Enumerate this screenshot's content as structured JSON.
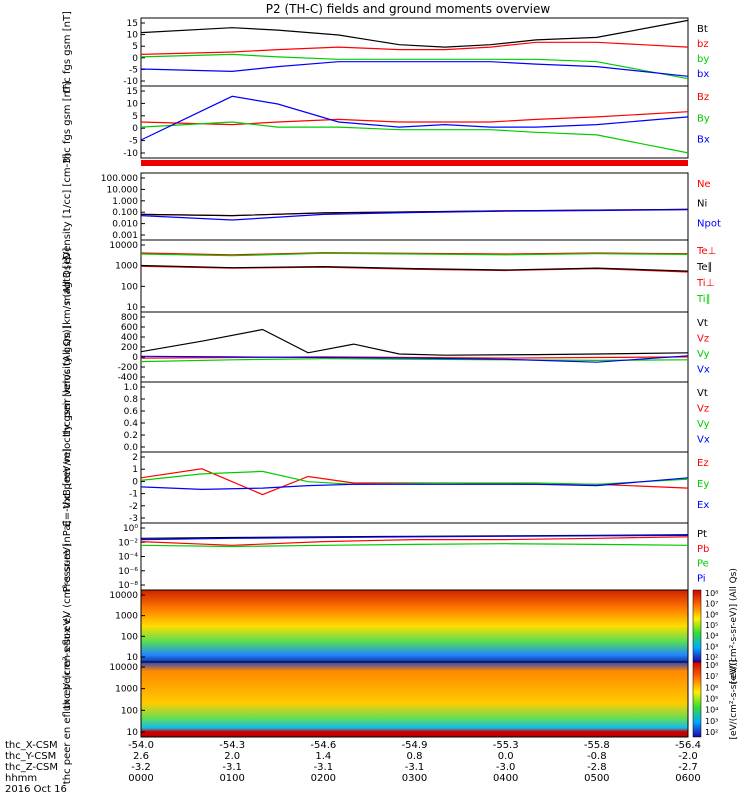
{
  "title": "P2 (TH-C) fields and ground moments overview",
  "chart_data": [
    {
      "type": "line",
      "ylabel": "thc fgs gsm [nT]",
      "yticks": [
        "15",
        "10",
        "5",
        "0",
        "-5",
        "-10"
      ],
      "ylim": [
        -12,
        16
      ],
      "series": [
        {
          "name": "Bt",
          "color": "#000000",
          "x": [
            0,
            60,
            90,
            130,
            170,
            200,
            230,
            260,
            300,
            360
          ],
          "values": [
            10,
            12,
            11,
            9,
            5,
            4,
            5,
            7,
            8,
            15
          ]
        },
        {
          "name": "bz",
          "color": "#ff0000",
          "x": [
            0,
            60,
            90,
            130,
            170,
            200,
            230,
            260,
            300,
            360
          ],
          "values": [
            1,
            2,
            3,
            4,
            3,
            3,
            4,
            6,
            6,
            4
          ]
        },
        {
          "name": "by",
          "color": "#00cc00",
          "x": [
            0,
            60,
            90,
            130,
            170,
            200,
            230,
            260,
            300,
            360
          ],
          "values": [
            0,
            1,
            0,
            -1,
            -1,
            -1,
            -1,
            -1,
            -2,
            -9
          ]
        },
        {
          "name": "bx",
          "color": "#0000ff",
          "x": [
            0,
            60,
            90,
            130,
            170,
            200,
            230,
            260,
            300,
            360
          ],
          "values": [
            -5,
            -6,
            -4,
            -2,
            -2,
            -2,
            -2,
            -3,
            -4,
            -8
          ]
        }
      ]
    },
    {
      "type": "line",
      "ylabel": "thc fgs gsm [nT]",
      "yticks": [
        "15",
        "10",
        "5",
        "0",
        "-5",
        "-10"
      ],
      "ylim": [
        -12,
        16
      ],
      "series": [
        {
          "name": "Bz",
          "color": "#ff0000",
          "x": [
            0,
            60,
            90,
            130,
            170,
            200,
            230,
            260,
            300,
            360
          ],
          "values": [
            2,
            1,
            2,
            3,
            2,
            2,
            2,
            3,
            4,
            6
          ]
        },
        {
          "name": "By",
          "color": "#00cc00",
          "x": [
            0,
            60,
            90,
            130,
            170,
            200,
            230,
            260,
            300,
            360
          ],
          "values": [
            0,
            2,
            0,
            0,
            -1,
            -1,
            -1,
            -2,
            -3,
            -10
          ]
        },
        {
          "name": "Bx",
          "color": "#0000ff",
          "x": [
            0,
            60,
            90,
            130,
            170,
            200,
            230,
            260,
            300,
            360
          ],
          "values": [
            -5,
            12,
            9,
            2,
            0,
            1,
            0,
            0,
            1,
            4
          ]
        }
      ]
    },
    {
      "type": "line",
      "ylabel": "Density [1/cc] [cm-3]",
      "yticks": [
        "100.000",
        "10.000",
        "1.000",
        "0.100",
        "0.010",
        "0.001"
      ],
      "yscale": "log",
      "ylim": [
        0.001,
        500
      ],
      "series": [
        {
          "name": "Ne",
          "color": "#ff0000",
          "x": [
            0,
            60,
            120,
            180,
            240,
            300,
            360
          ],
          "values": [
            0.15,
            0.12,
            0.2,
            0.25,
            0.3,
            0.35,
            0.4
          ]
        },
        {
          "name": "Ni",
          "color": "#000000",
          "x": [
            0,
            60,
            120,
            180,
            240,
            300,
            360
          ],
          "values": [
            0.15,
            0.12,
            0.2,
            0.25,
            0.3,
            0.35,
            0.4
          ]
        },
        {
          "name": "Npot",
          "color": "#0000ff",
          "x": [
            0,
            60,
            120,
            180,
            240,
            300,
            360
          ],
          "values": [
            0.12,
            0.05,
            0.15,
            0.22,
            0.28,
            0.32,
            0.38
          ]
        }
      ]
    },
    {
      "type": "line",
      "ylabel": "magt3 [eV]",
      "yticks": [
        "10000",
        "1000",
        "100",
        "10"
      ],
      "yscale": "log",
      "ylim": [
        2,
        12000
      ],
      "series": [
        {
          "name": "Te⊥",
          "color": "#ff0000",
          "x": [
            0,
            60,
            120,
            180,
            240,
            300,
            360
          ],
          "values": [
            500,
            400,
            450,
            350,
            300,
            380,
            250
          ]
        },
        {
          "name": "Te∥",
          "color": "#000000",
          "x": [
            0,
            60,
            120,
            180,
            240,
            300,
            360
          ],
          "values": [
            550,
            420,
            480,
            380,
            320,
            400,
            280
          ]
        },
        {
          "name": "Ti⊥",
          "color": "#ff0000",
          "x": [
            0,
            60,
            120,
            180,
            240,
            300,
            360
          ],
          "values": [
            2500,
            2000,
            2600,
            2400,
            2200,
            2500,
            2300
          ]
        },
        {
          "name": "Ti∥",
          "color": "#00cc00",
          "x": [
            0,
            60,
            120,
            180,
            240,
            300,
            360
          ],
          "values": [
            2200,
            1800,
            2400,
            2200,
            2000,
            2300,
            2100
          ]
        }
      ]
    },
    {
      "type": "line",
      "ylabel": "thc peir velocity gsm [km/s (All Qs)]",
      "yticks": [
        "800",
        "600",
        "400",
        "200",
        "0",
        "-200",
        "-400"
      ],
      "ylim": [
        -400,
        800
      ],
      "series": [
        {
          "name": "Vt",
          "color": "#000000",
          "x": [
            0,
            40,
            80,
            110,
            140,
            170,
            200,
            260,
            300,
            360
          ],
          "values": [
            120,
            300,
            500,
            100,
            250,
            80,
            60,
            70,
            80,
            100
          ]
        },
        {
          "name": "Vz",
          "color": "#ff0000",
          "x": [
            0,
            60,
            120,
            180,
            240,
            300,
            360
          ],
          "values": [
            10,
            20,
            30,
            20,
            10,
            20,
            30
          ]
        },
        {
          "name": "Vy",
          "color": "#00cc00",
          "x": [
            0,
            60,
            120,
            180,
            240,
            300,
            360
          ],
          "values": [
            -50,
            -20,
            0,
            -10,
            -20,
            -30,
            -20
          ]
        },
        {
          "name": "Vx",
          "color": "#0000ff",
          "x": [
            0,
            60,
            120,
            180,
            240,
            300,
            360
          ],
          "values": [
            40,
            30,
            20,
            10,
            -10,
            -60,
            50
          ]
        }
      ]
    },
    {
      "type": "line",
      "ylabel": "thc peer velocity gsm [km/s (All Qs)]",
      "yticks": [
        "1.0",
        "0.8",
        "0.6",
        "0.4",
        "0.2",
        "0.0"
      ],
      "ylim": [
        0,
        1
      ],
      "series": [
        {
          "name": "Vt",
          "color": "#000000",
          "x": [],
          "values": []
        },
        {
          "name": "Vz",
          "color": "#ff0000",
          "x": [],
          "values": []
        },
        {
          "name": "Vy",
          "color": "#00cc00",
          "x": [],
          "values": []
        },
        {
          "name": "Vx",
          "color": "#0000ff",
          "x": [],
          "values": []
        }
      ]
    },
    {
      "type": "line",
      "ylabel": "E=-VxB [mV/m]",
      "yticks": [
        "2",
        "1",
        "0",
        "-1",
        "-2",
        "-3"
      ],
      "ylim": [
        -3,
        2.5
      ],
      "series": [
        {
          "name": "Ez",
          "color": "#ff0000",
          "x": [
            0,
            40,
            80,
            110,
            140,
            200,
            260,
            300,
            360
          ],
          "values": [
            0.5,
            1.2,
            -0.8,
            0.6,
            0.1,
            0.1,
            0.0,
            0.0,
            -0.3
          ]
        },
        {
          "name": "Ey",
          "color": "#00cc00",
          "x": [
            0,
            40,
            80,
            110,
            140,
            200,
            260,
            300,
            360
          ],
          "values": [
            0.3,
            0.8,
            1.0,
            0.2,
            0.0,
            0.1,
            0.1,
            0.0,
            0.4
          ]
        },
        {
          "name": "Ex",
          "color": "#0000ff",
          "x": [
            0,
            40,
            80,
            110,
            140,
            200,
            260,
            300,
            360
          ],
          "values": [
            -0.2,
            -0.4,
            -0.3,
            -0.1,
            0.0,
            0.0,
            0.0,
            -0.1,
            0.5
          ]
        }
      ]
    },
    {
      "type": "line",
      "ylabel": "Pressure [nPa]",
      "yticks": [
        "10⁰",
        "10⁻²",
        "10⁻⁴",
        "10⁻⁶",
        "10⁻⁸"
      ],
      "yscale": "log",
      "ylim": [
        1e-09,
        5
      ],
      "series": [
        {
          "name": "Pt",
          "color": "#000000",
          "x": [
            0,
            60,
            120,
            180,
            240,
            300,
            360
          ],
          "values": [
            0.03,
            0.04,
            0.05,
            0.06,
            0.07,
            0.08,
            0.1
          ]
        },
        {
          "name": "Pb",
          "color": "#ff0000",
          "x": [
            0,
            60,
            120,
            180,
            240,
            300,
            360
          ],
          "values": [
            0.01,
            0.003,
            0.01,
            0.02,
            0.02,
            0.03,
            0.05
          ]
        },
        {
          "name": "Pe",
          "color": "#00cc00",
          "x": [
            0,
            60,
            120,
            180,
            240,
            300,
            360
          ],
          "values": [
            0.003,
            0.002,
            0.003,
            0.004,
            0.005,
            0.004,
            0.003
          ]
        },
        {
          "name": "Pi",
          "color": "#0000ff",
          "x": [
            0,
            60,
            120,
            180,
            240,
            300,
            360
          ],
          "values": [
            0.02,
            0.03,
            0.04,
            0.05,
            0.06,
            0.07,
            0.08
          ]
        }
      ]
    },
    {
      "type": "heatmap",
      "ylabel": "thc peir en eflux eV (cm²-s-sr-eV)",
      "yticks": [
        "10000",
        "1000",
        "100",
        "10"
      ],
      "colorbar_ticks": [
        "10⁸",
        "10⁷",
        "10⁶",
        "10⁵",
        "10⁴",
        "10³",
        "10²"
      ],
      "colorbar_label": "[eV/(cm²-s-sr-eV)] (All Qs)"
    },
    {
      "type": "heatmap",
      "ylabel": "thc peer en eflux eV (cm²-s-sr-eV)",
      "yticks": [
        "10000",
        "1000",
        "100",
        "10"
      ],
      "colorbar_ticks": [
        "10⁸",
        "10⁷",
        "10⁶",
        "10⁵",
        "10⁴",
        "10³",
        "10²"
      ],
      "colorbar_label": "[eV/(cm²-s-sr-eV)]"
    }
  ],
  "xaxis": {
    "rows": [
      {
        "label": "thc_X-CSM",
        "values": [
          "-54.0",
          "-54.3",
          "-54.6",
          "-54.9",
          "-55.3",
          "-55.8",
          "-56.4"
        ]
      },
      {
        "label": "thc_Y-CSM",
        "values": [
          "2.6",
          "2.0",
          "1.4",
          "0.8",
          "0.0",
          "-0.8",
          "-2.0"
        ]
      },
      {
        "label": "thc_Z-CSM",
        "values": [
          "-3.2",
          "-3.1",
          "-3.1",
          "-3.1",
          "-3.0",
          "-2.8",
          "-2.7"
        ]
      },
      {
        "label": "hhmm",
        "values": [
          "0000",
          "0100",
          "0200",
          "0300",
          "0400",
          "0500",
          "0600"
        ]
      }
    ],
    "date": "2016 Oct 16"
  }
}
